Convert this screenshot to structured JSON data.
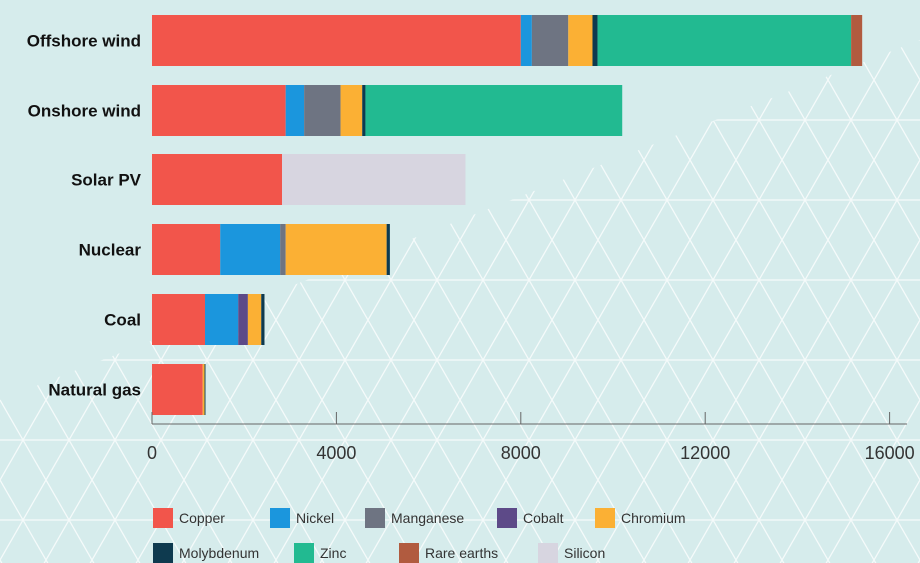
{
  "chart_data": {
    "type": "bar",
    "orientation": "horizontal",
    "stacked": true,
    "categories": [
      "Offshore wind",
      "Onshore wind",
      "Solar PV",
      "Nuclear",
      "Coal",
      "Natural gas"
    ],
    "series": [
      {
        "name": "Copper",
        "color": "#f2554b",
        "values": [
          8000,
          2900,
          2820,
          1480,
          1150,
          1100
        ]
      },
      {
        "name": "Nickel",
        "color": "#1b96dd",
        "values": [
          240,
          400,
          0,
          1300,
          720,
          0
        ]
      },
      {
        "name": "Manganese",
        "color": "#6e7482",
        "values": [
          790,
          790,
          0,
          120,
          0,
          0
        ]
      },
      {
        "name": "Cobalt",
        "color": "#5d4a88",
        "values": [
          0,
          0,
          0,
          0,
          210,
          0
        ]
      },
      {
        "name": "Chromium",
        "color": "#fbb034",
        "values": [
          525,
          470,
          0,
          2190,
          290,
          40
        ]
      },
      {
        "name": "Molybdenum",
        "color": "#0e3a4f",
        "values": [
          110,
          70,
          0,
          70,
          70,
          20
        ]
      },
      {
        "name": "Zinc",
        "color": "#22ba91",
        "values": [
          5500,
          5570,
          0,
          0,
          0,
          0
        ]
      },
      {
        "name": "Rare earths",
        "color": "#b15b3f",
        "values": [
          240,
          0,
          0,
          0,
          0,
          0
        ]
      },
      {
        "name": "Silicon",
        "color": "#d7d5e0",
        "values": [
          0,
          0,
          3980,
          0,
          0,
          0
        ]
      }
    ],
    "xlim": [
      0,
      16000
    ],
    "xticks": [
      "0",
      "4000",
      "8000",
      "12000",
      "16000"
    ],
    "tick_values": [
      0,
      4000,
      8000,
      12000,
      16000
    ],
    "grid": false,
    "legend_position": "bottom"
  }
}
